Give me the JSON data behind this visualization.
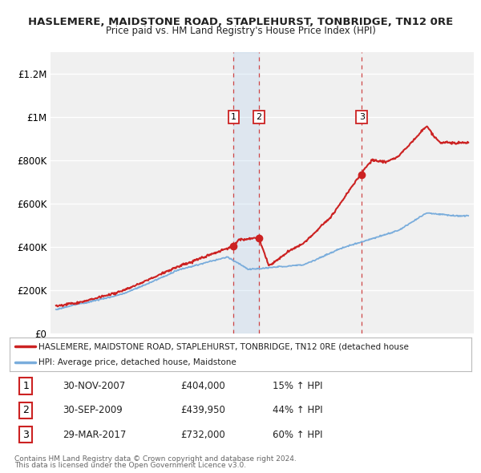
{
  "title": "HASLEMERE, MAIDSTONE ROAD, STAPLEHURST, TONBRIDGE, TN12 0RE",
  "subtitle": "Price paid vs. HM Land Registry's House Price Index (HPI)",
  "ylim": [
    0,
    1300000
  ],
  "yticks": [
    0,
    200000,
    400000,
    600000,
    800000,
    1000000,
    1200000
  ],
  "ytick_labels": [
    "£0",
    "£200K",
    "£400K",
    "£600K",
    "£800K",
    "£1M",
    "£1.2M"
  ],
  "red_line_color": "#cc2222",
  "blue_line_color": "#7aaddc",
  "sale_dates": [
    2007.92,
    2009.75,
    2017.25
  ],
  "sale_prices": [
    404000,
    439950,
    732000
  ],
  "sale_labels": [
    "1",
    "2",
    "3"
  ],
  "legend_red_label": "HASLEMERE, MAIDSTONE ROAD, STAPLEHURST, TONBRIDGE, TN12 0RE (detached house",
  "legend_blue_label": "HPI: Average price, detached house, Maidstone",
  "table_data": [
    [
      "1",
      "30-NOV-2007",
      "£404,000",
      "15% ↑ HPI"
    ],
    [
      "2",
      "30-SEP-2009",
      "£439,950",
      "44% ↑ HPI"
    ],
    [
      "3",
      "29-MAR-2017",
      "£732,000",
      "60% ↑ HPI"
    ]
  ],
  "footnote1": "Contains HM Land Registry data © Crown copyright and database right 2024.",
  "footnote2": "This data is licensed under the Open Government Licence v3.0.",
  "background_color": "#ffffff",
  "plot_bg_color": "#f0f0f0",
  "shade_color": "#ddeeff"
}
